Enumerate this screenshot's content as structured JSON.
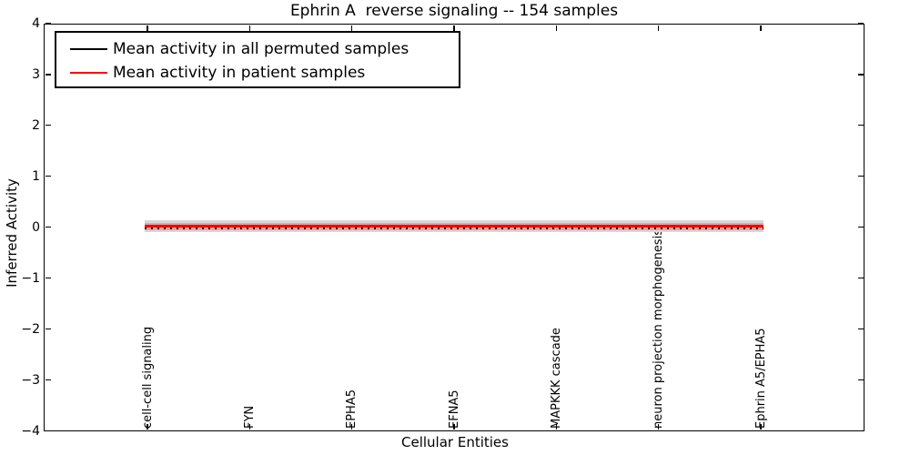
{
  "figure": {
    "title": "Ephrin A  reverse signaling -- 154 samples",
    "xlabel": "Cellular Entities",
    "ylabel": "Inferred Activity"
  },
  "legend": {
    "position": "upper-left",
    "entries": [
      {
        "label": "Mean activity in all permuted samples",
        "color": "#000000"
      },
      {
        "label": "Mean activity in patient samples",
        "color": "#ff0000"
      }
    ]
  },
  "chart_data": {
    "type": "line",
    "title": "Ephrin A  reverse signaling -- 154 samples",
    "xlabel": "Cellular Entities",
    "ylabel": "Inferred Activity",
    "ylim": [
      -4,
      4
    ],
    "yticks": [
      4,
      3,
      2,
      1,
      0,
      -1,
      -2,
      -3,
      -4
    ],
    "grid": false,
    "legend_position": "upper left",
    "categories": [
      "cell-cell signaling",
      "FYN",
      "EPHA5",
      "EFNA5",
      "MAPKKK cascade",
      "neuron projection morphogenesis",
      "Ephrin A5/EPHA5"
    ],
    "series": [
      {
        "name": "Mean activity in all permuted samples",
        "color": "#000000",
        "line_style": "dotted",
        "values": [
          -0.02,
          -0.02,
          -0.02,
          -0.02,
          -0.02,
          -0.02,
          -0.02
        ]
      },
      {
        "name": "Mean activity in patient samples",
        "color": "#f40000",
        "line_style": "solid",
        "values": [
          0.02,
          0.02,
          0.02,
          0.02,
          0.02,
          0.02,
          0.02
        ]
      }
    ],
    "bands": [
      {
        "name": "all permuted samples spread",
        "color": "#d8d8d8",
        "low": -0.1,
        "high": 0.14
      },
      {
        "name": "patient samples spread",
        "color": "#efa0a0",
        "low": -0.06,
        "high": 0.09
      }
    ]
  }
}
